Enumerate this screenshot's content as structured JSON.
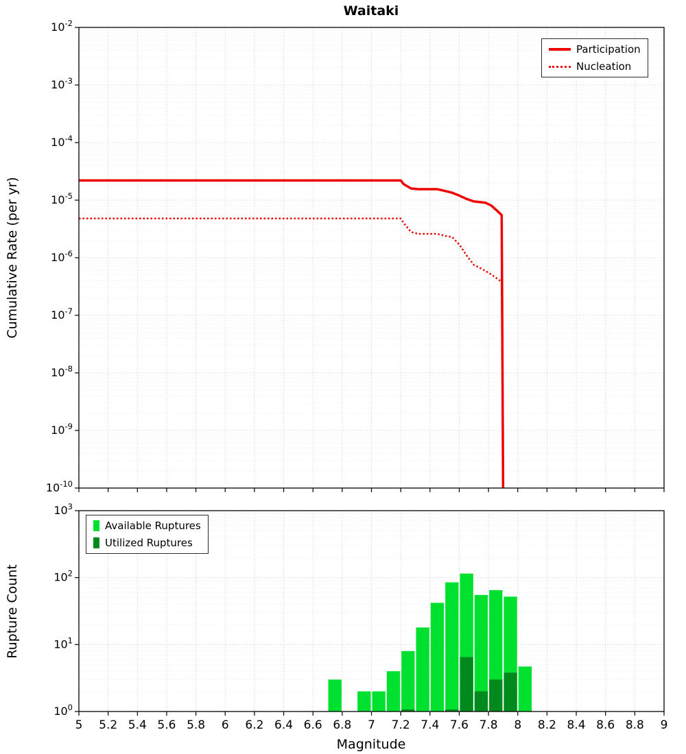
{
  "chart_data": [
    {
      "id": "rate-chart",
      "type": "line",
      "title": "Waitaki",
      "xlabel": "",
      "ylabel": "Cumulative Rate (per yr)",
      "xlim": [
        5,
        9
      ],
      "x_tick_step": 0.2,
      "y_scale": "log",
      "y_exponent_range": [
        -10,
        -2
      ],
      "grid": true,
      "legend_position": "top-right",
      "series": [
        {
          "name": "Participation",
          "color": "#ee0000",
          "line_style": "solid",
          "line_width": 3.5,
          "points": [
            [
              5.0,
              2.2e-05
            ],
            [
              7.2,
              2.2e-05
            ],
            [
              7.22,
              1.9e-05
            ],
            [
              7.27,
              1.6e-05
            ],
            [
              7.32,
              1.55e-05
            ],
            [
              7.45,
              1.55e-05
            ],
            [
              7.5,
              1.45e-05
            ],
            [
              7.55,
              1.35e-05
            ],
            [
              7.6,
              1.2e-05
            ],
            [
              7.65,
              1.05e-05
            ],
            [
              7.7,
              9.5e-06
            ],
            [
              7.78,
              9e-06
            ],
            [
              7.82,
              8e-06
            ],
            [
              7.86,
              6.5e-06
            ],
            [
              7.89,
              5.5e-06
            ],
            [
              7.9,
              1e-10
            ]
          ]
        },
        {
          "name": "Nucleation",
          "color": "#ee0000",
          "line_style": "dotted",
          "line_width": 2.5,
          "points": [
            [
              5.0,
              4.8e-06
            ],
            [
              7.2,
              4.8e-06
            ],
            [
              7.22,
              4e-06
            ],
            [
              7.27,
              2.8e-06
            ],
            [
              7.32,
              2.6e-06
            ],
            [
              7.45,
              2.6e-06
            ],
            [
              7.5,
              2.4e-06
            ],
            [
              7.55,
              2.3e-06
            ],
            [
              7.6,
              1.7e-06
            ],
            [
              7.65,
              1.1e-06
            ],
            [
              7.7,
              7.5e-07
            ],
            [
              7.75,
              6.5e-07
            ],
            [
              7.8,
              5.5e-07
            ],
            [
              7.85,
              4.5e-07
            ],
            [
              7.89,
              3.8e-07
            ],
            [
              7.9,
              1e-10
            ]
          ]
        }
      ]
    },
    {
      "id": "count-chart",
      "type": "bar",
      "title": "",
      "xlabel": "Magnitude",
      "ylabel": "Rupture Count",
      "xlim": [
        5,
        9
      ],
      "x_tick_step": 0.2,
      "y_scale": "log",
      "y_exponent_range": [
        0,
        3
      ],
      "bar_width": 0.1,
      "grid": true,
      "legend_position": "top-left",
      "series": [
        {
          "name": "Available Ruptures",
          "color": "#00e02e",
          "centers": [
            6.75,
            6.95,
            7.05,
            7.15,
            7.25,
            7.35,
            7.45,
            7.55,
            7.65,
            7.75,
            7.85,
            7.95,
            8.05
          ],
          "values": [
            3,
            2,
            2,
            4,
            8,
            18,
            42,
            85,
            115,
            55,
            65,
            52,
            4.7
          ]
        },
        {
          "name": "Utilized Ruptures",
          "color": "#008a1e",
          "centers": [
            7.25,
            7.55,
            7.65,
            7.75,
            7.85,
            7.95
          ],
          "values": [
            1,
            1,
            6.5,
            2,
            3,
            3.8
          ]
        }
      ]
    }
  ]
}
